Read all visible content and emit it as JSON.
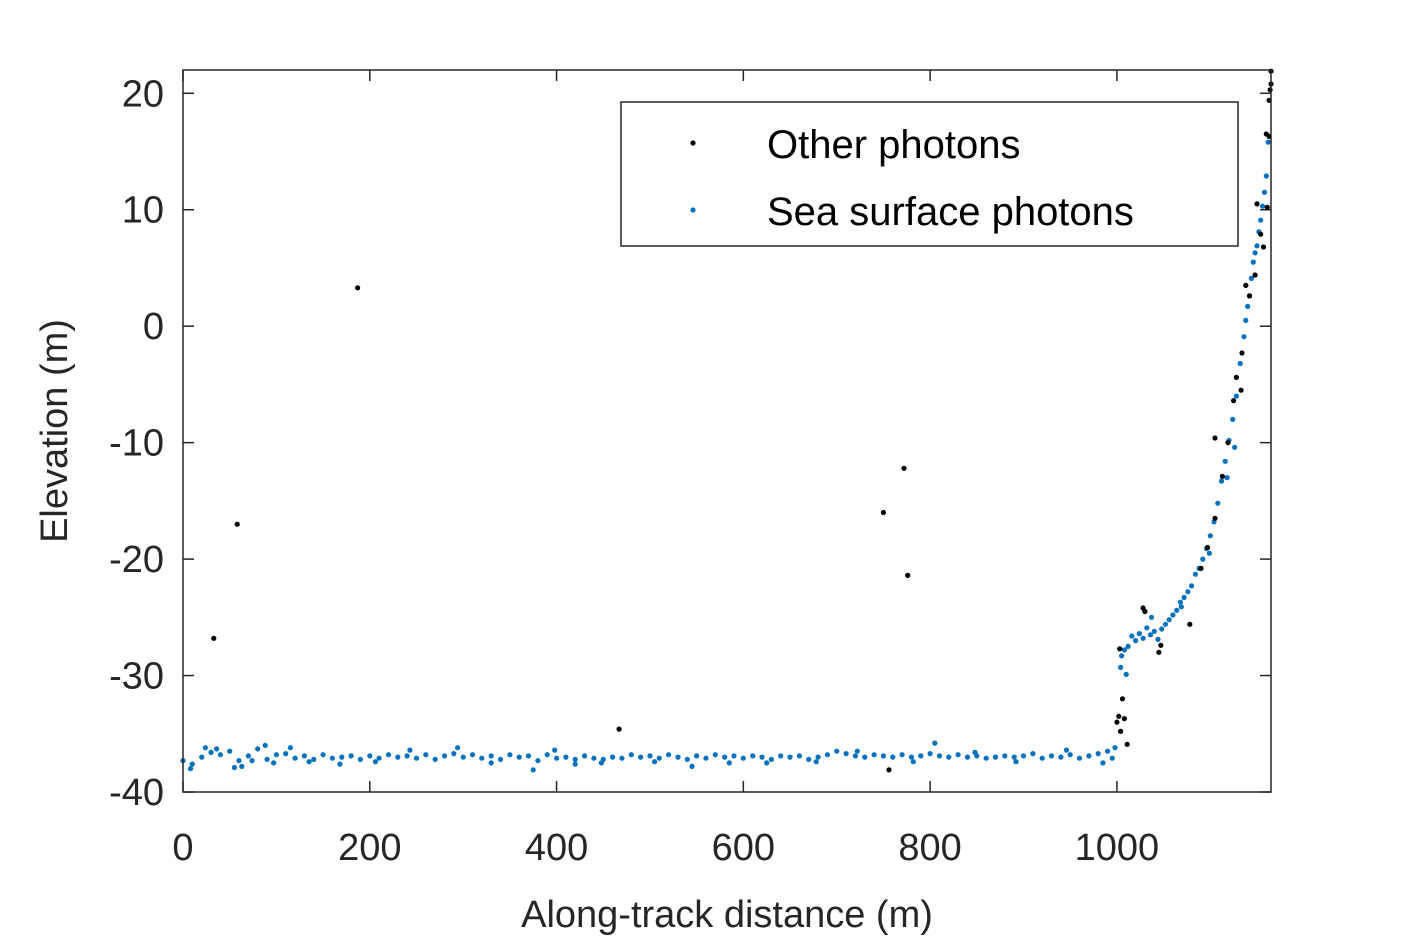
{
  "colors": {
    "other": "#000000",
    "sea": "#0072BD",
    "axis": "#262626"
  },
  "chart_data": {
    "type": "scatter",
    "xlabel": "Along-track distance (m)",
    "ylabel": "Elevation (m)",
    "xlim": [
      0,
      1165
    ],
    "ylim": [
      -40,
      22
    ],
    "xticks": [
      0,
      200,
      400,
      600,
      800,
      1000
    ],
    "yticks": [
      -40,
      -30,
      -20,
      -10,
      0,
      10,
      20
    ],
    "legend_position": "top-right",
    "series": [
      {
        "name": "Other photons",
        "color": "#000000",
        "points": [
          [
            33,
            -26.8
          ],
          [
            58,
            -17.0
          ],
          [
            187,
            3.3
          ],
          [
            467,
            -34.6
          ],
          [
            750,
            -16.0
          ],
          [
            756,
            -38.1
          ],
          [
            772,
            -12.2
          ],
          [
            776,
            -21.4
          ],
          [
            1000,
            -34.0
          ],
          [
            1002,
            -33.5
          ],
          [
            1004,
            -34.8
          ],
          [
            1006,
            -32.0
          ],
          [
            1008,
            -33.7
          ],
          [
            1011,
            -35.9
          ],
          [
            1003,
            -27.7
          ],
          [
            1028,
            -24.2
          ],
          [
            1030,
            -24.5
          ],
          [
            1045,
            -28.0
          ],
          [
            1047,
            -27.4
          ],
          [
            1078,
            -25.6
          ],
          [
            1090,
            -20.8
          ],
          [
            1097,
            -19.0
          ],
          [
            1105,
            -16.5
          ],
          [
            1105,
            -9.6
          ],
          [
            1113,
            -12.9
          ],
          [
            1119,
            -10.0
          ],
          [
            1125,
            -6.4
          ],
          [
            1128,
            -4.4
          ],
          [
            1133,
            -5.5
          ],
          [
            1134,
            -2.3
          ],
          [
            1138,
            3.5
          ],
          [
            1142,
            2.6
          ],
          [
            1148,
            4.4
          ],
          [
            1150,
            10.5
          ],
          [
            1154,
            7.9
          ],
          [
            1157,
            6.8
          ],
          [
            1160,
            16.5
          ],
          [
            1161,
            10.2
          ],
          [
            1163,
            19.4
          ],
          [
            1164,
            20.3
          ],
          [
            1165,
            21.9
          ],
          [
            1165,
            20.8
          ],
          [
            1163,
            16.3
          ]
        ]
      },
      {
        "name": "Sea surface photons",
        "color": "#0072BD",
        "points": [
          [
            0,
            -37.3
          ],
          [
            10,
            -37.6
          ],
          [
            20,
            -37.0
          ],
          [
            30,
            -36.6
          ],
          [
            40,
            -36.8
          ],
          [
            50,
            -36.5
          ],
          [
            60,
            -37.3
          ],
          [
            70,
            -36.9
          ],
          [
            80,
            -36.3
          ],
          [
            90,
            -37.2
          ],
          [
            100,
            -36.8
          ],
          [
            110,
            -36.7
          ],
          [
            120,
            -37.1
          ],
          [
            130,
            -36.9
          ],
          [
            140,
            -37.2
          ],
          [
            150,
            -36.8
          ],
          [
            160,
            -37.1
          ],
          [
            170,
            -37.0
          ],
          [
            180,
            -36.9
          ],
          [
            190,
            -37.2
          ],
          [
            200,
            -36.9
          ],
          [
            210,
            -37.1
          ],
          [
            220,
            -36.8
          ],
          [
            230,
            -37.0
          ],
          [
            240,
            -36.9
          ],
          [
            250,
            -37.1
          ],
          [
            260,
            -36.8
          ],
          [
            270,
            -37.2
          ],
          [
            280,
            -36.9
          ],
          [
            290,
            -36.7
          ],
          [
            300,
            -37.0
          ],
          [
            310,
            -36.8
          ],
          [
            320,
            -37.1
          ],
          [
            330,
            -36.9
          ],
          [
            340,
            -37.2
          ],
          [
            350,
            -36.8
          ],
          [
            360,
            -37.0
          ],
          [
            370,
            -36.9
          ],
          [
            380,
            -37.3
          ],
          [
            390,
            -36.8
          ],
          [
            400,
            -37.1
          ],
          [
            410,
            -37.0
          ],
          [
            420,
            -37.2
          ],
          [
            430,
            -36.9
          ],
          [
            440,
            -37.1
          ],
          [
            450,
            -37.2
          ],
          [
            460,
            -37.0
          ],
          [
            470,
            -37.1
          ],
          [
            480,
            -36.8
          ],
          [
            490,
            -37.0
          ],
          [
            500,
            -36.9
          ],
          [
            510,
            -37.1
          ],
          [
            520,
            -36.8
          ],
          [
            530,
            -37.0
          ],
          [
            540,
            -37.2
          ],
          [
            550,
            -36.9
          ],
          [
            560,
            -37.1
          ],
          [
            570,
            -36.8
          ],
          [
            580,
            -37.0
          ],
          [
            590,
            -36.9
          ],
          [
            600,
            -37.1
          ],
          [
            610,
            -36.9
          ],
          [
            620,
            -37.0
          ],
          [
            630,
            -37.2
          ],
          [
            640,
            -36.9
          ],
          [
            650,
            -37.0
          ],
          [
            660,
            -36.9
          ],
          [
            670,
            -37.2
          ],
          [
            680,
            -37.0
          ],
          [
            690,
            -36.8
          ],
          [
            700,
            -36.5
          ],
          [
            710,
            -36.7
          ],
          [
            720,
            -36.9
          ],
          [
            730,
            -37.0
          ],
          [
            740,
            -36.8
          ],
          [
            750,
            -36.9
          ],
          [
            760,
            -37.0
          ],
          [
            770,
            -36.8
          ],
          [
            780,
            -37.0
          ],
          [
            790,
            -36.9
          ],
          [
            800,
            -36.7
          ],
          [
            810,
            -36.9
          ],
          [
            820,
            -37.0
          ],
          [
            830,
            -36.8
          ],
          [
            840,
            -37.0
          ],
          [
            850,
            -36.9
          ],
          [
            860,
            -37.1
          ],
          [
            870,
            -37.0
          ],
          [
            880,
            -36.9
          ],
          [
            890,
            -37.0
          ],
          [
            900,
            -36.9
          ],
          [
            910,
            -36.7
          ],
          [
            920,
            -37.1
          ],
          [
            930,
            -36.9
          ],
          [
            940,
            -37.0
          ],
          [
            950,
            -36.8
          ],
          [
            960,
            -37.1
          ],
          [
            970,
            -36.9
          ],
          [
            980,
            -36.7
          ],
          [
            990,
            -36.5
          ],
          [
            998,
            -36.2
          ],
          [
            8,
            -38.0
          ],
          [
            24,
            -36.2
          ],
          [
            36,
            -36.3
          ],
          [
            55,
            -37.9
          ],
          [
            63,
            -37.8
          ],
          [
            74,
            -37.3
          ],
          [
            88,
            -36.0
          ],
          [
            97,
            -37.5
          ],
          [
            115,
            -36.2
          ],
          [
            135,
            -37.4
          ],
          [
            168,
            -37.6
          ],
          [
            206,
            -37.4
          ],
          [
            243,
            -36.4
          ],
          [
            294,
            -36.2
          ],
          [
            330,
            -37.5
          ],
          [
            375,
            -38.1
          ],
          [
            398,
            -36.4
          ],
          [
            420,
            -37.6
          ],
          [
            448,
            -37.5
          ],
          [
            505,
            -37.4
          ],
          [
            545,
            -37.8
          ],
          [
            585,
            -37.5
          ],
          [
            625,
            -37.5
          ],
          [
            678,
            -37.4
          ],
          [
            722,
            -36.5
          ],
          [
            782,
            -37.4
          ],
          [
            805,
            -35.8
          ],
          [
            848,
            -36.6
          ],
          [
            892,
            -37.4
          ],
          [
            946,
            -36.4
          ],
          [
            985,
            -37.5
          ],
          [
            995,
            -37.1
          ],
          [
            1004,
            -29.3
          ],
          [
            1005,
            -28.3
          ],
          [
            1008,
            -27.8
          ],
          [
            1012,
            -27.5
          ],
          [
            1016,
            -26.6
          ],
          [
            1020,
            -27.0
          ],
          [
            1024,
            -26.4
          ],
          [
            1028,
            -26.8
          ],
          [
            1032,
            -25.9
          ],
          [
            1036,
            -26.5
          ],
          [
            1040,
            -26.2
          ],
          [
            1044,
            -26.9
          ],
          [
            1048,
            -26.0
          ],
          [
            1052,
            -25.6
          ],
          [
            1056,
            -25.2
          ],
          [
            1060,
            -24.8
          ],
          [
            1064,
            -24.4
          ],
          [
            1068,
            -23.7
          ],
          [
            1072,
            -23.3
          ],
          [
            1076,
            -22.8
          ],
          [
            1080,
            -22.3
          ],
          [
            1084,
            -21.3
          ],
          [
            1088,
            -20.8
          ],
          [
            1092,
            -20.0
          ],
          [
            1096,
            -19.1
          ],
          [
            1100,
            -18.0
          ],
          [
            1104,
            -16.8
          ],
          [
            1108,
            -15.2
          ],
          [
            1112,
            -13.3
          ],
          [
            1116,
            -11.6
          ],
          [
            1120,
            -9.8
          ],
          [
            1124,
            -8.0
          ],
          [
            1128,
            -6.0
          ],
          [
            1132,
            -3.2
          ],
          [
            1136,
            -0.9
          ],
          [
            1138,
            0.5
          ],
          [
            1140,
            1.7
          ],
          [
            1142,
            2.6
          ],
          [
            1144,
            4.1
          ],
          [
            1146,
            5.5
          ],
          [
            1148,
            6.3
          ],
          [
            1150,
            6.9
          ],
          [
            1152,
            8.1
          ],
          [
            1154,
            9.1
          ],
          [
            1156,
            10.3
          ],
          [
            1158,
            11.5
          ],
          [
            1160,
            12.9
          ],
          [
            1162,
            15.8
          ],
          [
            1010,
            -29.9
          ],
          [
            1037,
            -25.0
          ],
          [
            1069,
            -24.1
          ],
          [
            1099,
            -19.5
          ],
          [
            1118,
            -13.0
          ],
          [
            1126,
            -10.4
          ]
        ]
      }
    ]
  }
}
